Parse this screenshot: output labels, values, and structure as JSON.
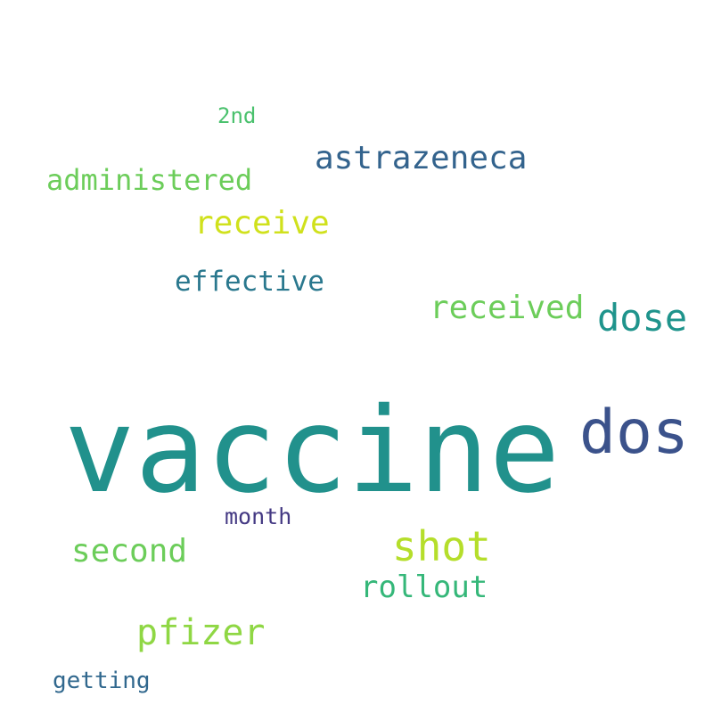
{
  "words": [
    {
      "text": "vaccine",
      "color": "#21918c"
    },
    {
      "text": "dos",
      "color": "#3b528b"
    },
    {
      "text": "dose",
      "color": "#1f948c"
    },
    {
      "text": "shot",
      "color": "#b5de2b"
    },
    {
      "text": "astrazeneca",
      "color": "#33638d"
    },
    {
      "text": "received",
      "color": "#6ccd5a"
    },
    {
      "text": "receive",
      "color": "#d0e11c"
    },
    {
      "text": "administered",
      "color": "#6ccd5a"
    },
    {
      "text": "effective",
      "color": "#2a788e"
    },
    {
      "text": "second",
      "color": "#6ccd5a"
    },
    {
      "text": "pfizer",
      "color": "#8fd744"
    },
    {
      "text": "rollout",
      "color": "#35b779"
    },
    {
      "text": "month",
      "color": "#443983"
    },
    {
      "text": "2nd",
      "color": "#4ac16d"
    },
    {
      "text": "getting",
      "color": "#31688e"
    }
  ]
}
